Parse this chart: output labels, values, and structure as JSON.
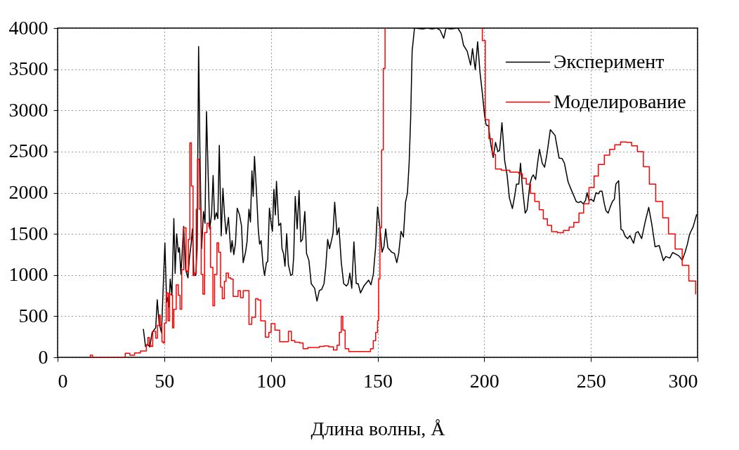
{
  "chart_data": {
    "type": "line",
    "xlabel": "Длина волны, Å",
    "xlim": [
      0,
      300
    ],
    "xticks": [
      0,
      50,
      100,
      150,
      200,
      250,
      300
    ],
    "ylim": [
      0,
      4000
    ],
    "yticks": [
      0,
      500,
      1000,
      1500,
      2000,
      2500,
      3000,
      3500,
      4000
    ],
    "grid": true,
    "legend": "top right",
    "series": [
      {
        "name": "Эксперимент",
        "color": "#000000",
        "x": [
          40.2,
          41.2,
          42.1,
          43.2,
          44.3,
          46,
          46.7,
          47.6,
          48.7,
          50.3,
          51.1,
          51.6,
          52.2,
          52.8,
          53.6,
          54.5,
          55.1,
          55.8,
          56.6,
          57.1,
          57.8,
          59.1,
          60,
          61.1,
          61.8,
          62.6,
          63.2,
          63.9,
          64.8,
          65.4,
          66.1,
          66.7,
          67.5,
          68.4,
          69.1,
          69.8,
          70.6,
          71.3,
          72.2,
          72.9,
          73.6,
          74.4,
          75.1,
          75.8,
          76.7,
          77.5,
          78.2,
          79,
          80.1,
          81.2,
          81.8,
          82.6,
          83.4,
          84.2,
          85.3,
          86.2,
          87,
          88.1,
          88.8,
          89.7,
          90.4,
          91.1,
          91.7,
          92.3,
          93.2,
          94.1,
          94.7,
          95.4,
          96.3,
          97,
          97.9,
          98.5,
          99.3,
          100.1,
          100.7,
          101.4,
          102.1,
          102.6,
          103.7,
          104.6,
          105.2,
          105.9,
          106.6,
          107.4,
          108.2,
          109.3,
          110.1,
          110.7,
          111.4,
          112.3,
          113.2,
          114,
          114.8,
          115.9,
          116.7,
          117.8,
          118.9,
          119.7,
          120.5,
          121.6,
          122.7,
          123.8,
          124.9,
          125.7,
          126.6,
          127.5,
          128.5,
          129.1,
          129.9,
          131,
          131.9,
          133,
          134.1,
          135.4,
          136.2,
          137,
          137.9,
          138.9,
          140,
          140.9,
          142,
          143.6,
          145.8,
          146.9,
          148,
          149.1,
          150,
          151.1,
          152.1,
          153,
          153.8,
          154.8,
          156.6,
          157.9,
          159,
          159.9,
          161,
          162.1,
          163.1,
          164,
          164.8,
          165.5,
          166.2,
          167.3,
          171.1,
          173.3,
          175.5,
          177.7,
          179.3,
          181,
          182.1,
          184.3,
          187.6,
          189.2,
          190.3,
          192,
          193.6,
          194.5,
          195.8,
          196.9,
          198,
          199.1,
          200.2,
          200.9,
          202,
          203.1,
          204.2,
          205.3,
          206.4,
          207.2,
          208.3,
          209.6,
          210.7,
          211.8,
          213.2,
          214.3,
          215.1,
          216.2,
          217,
          217.9,
          219.2,
          220.1,
          221.4,
          222.3,
          223,
          224.1,
          225,
          225.9,
          227.2,
          228.3,
          229.4,
          231,
          233.2,
          235.1,
          236.5,
          237.6,
          239.3,
          240.6,
          242,
          243.1,
          244.2,
          245.3,
          246.4,
          247.5,
          248.2,
          249.1,
          250.2,
          251.3,
          252.4,
          253.5,
          254.3,
          255.2,
          256.3,
          257.1,
          258.1,
          259,
          260.1,
          261,
          261.7,
          263,
          264.1,
          265,
          266.1,
          267.2,
          268.3,
          270,
          271.1,
          272.1,
          273.8,
          275.4,
          277.1,
          278.5,
          280.1,
          282,
          284,
          285.1,
          287,
          288.3,
          289.9,
          291.3,
          292.8,
          294.1,
          295.2,
          296.3,
          297.9,
          299.6
        ],
        "values": [
          345,
          133,
          160,
          127,
          302,
          360,
          700,
          415,
          300,
          1390,
          670,
          725,
          613,
          950,
          755,
          1686,
          1020,
          1500,
          1277,
          1333,
          1008,
          1590,
          1065,
          966,
          1206,
          1376,
          1560,
          995,
          995,
          1320,
          3777,
          2534,
          1320,
          1771,
          1630,
          2986,
          2209,
          1560,
          1743,
          2209,
          1672,
          1757,
          1686,
          2576,
          1475,
          2054,
          1743,
          1500,
          1700,
          1277,
          1418,
          1248,
          1390,
          1813,
          1729,
          1600,
          1150,
          1277,
          1404,
          1800,
          1644,
          2266,
          1955,
          2441,
          2026,
          1545,
          1376,
          1418,
          1122,
          995,
          1150,
          1164,
          1813,
          1630,
          1531,
          2040,
          1729,
          2138,
          1600,
          1630,
          1320,
          1263,
          1107,
          1503,
          1122,
          995,
          1008,
          1234,
          1955,
          1560,
          2026,
          1404,
          1432,
          1771,
          1263,
          1178,
          896,
          867,
          839,
          684,
          811,
          825,
          896,
          1093,
          1432,
          1320,
          1432,
          1503,
          1884,
          1489,
          1574,
          1150,
          896,
          867,
          896,
          1023,
          839,
          1404,
          896,
          896,
          783,
          867,
          938,
          881,
          1008,
          1348,
          1828,
          1574,
          1277,
          1348,
          1560,
          1333,
          1277,
          1263,
          1150,
          1263,
          1531,
          1460,
          1884,
          1997,
          2364,
          2900,
          3720,
          4000,
          3990,
          4000,
          3990,
          4000,
          3975,
          3876,
          4000,
          3990,
          4000,
          3932,
          3791,
          3720,
          3551,
          3750,
          3494,
          3833,
          3466,
          3212,
          2929,
          2823,
          2810,
          2583,
          2428,
          2611,
          2499,
          2513,
          2851,
          2386,
          2217,
          1935,
          1808,
          1963,
          2104,
          2104,
          2358,
          2062,
          1752,
          1794,
          2104,
          2189,
          2217,
          2161,
          2358,
          2527,
          2358,
          2310,
          2470,
          2766,
          2696,
          2420,
          2415,
          2358,
          2132,
          2048,
          1963,
          1893,
          1879,
          1893,
          1865,
          1907,
          2000,
          1907,
          1921,
          1893,
          2000,
          1986,
          2020,
          2020,
          1865,
          1780,
          1752,
          1822,
          1893,
          1921,
          2104,
          2146,
          1555,
          1541,
          1470,
          1442,
          1479,
          1386,
          1513,
          1527,
          1442,
          1640,
          1822,
          1625,
          1344,
          1358,
          1175,
          1225,
          1206,
          1273,
          1253,
          1231,
          1180,
          1273,
          1372,
          1499,
          1583,
          1738
        ]
      },
      {
        "name": "Моделирование",
        "color": "#ff0000",
        "type": "step",
        "x": [
          14.8,
          15.3,
          16.4,
          31.2,
          31.7,
          33.9,
          36.1,
          38.8,
          41.6,
          42.3,
          43,
          43.8,
          44.6,
          46,
          46.8,
          47.6,
          48.1,
          48.9,
          49.5,
          50.1,
          50.9,
          51.8,
          52.5,
          53.3,
          53.9,
          54.5,
          55.6,
          56.6,
          57.4,
          58.2,
          59.1,
          60.2,
          60.7,
          61.3,
          62,
          62.7,
          63.5,
          64.2,
          65,
          65.6,
          66.4,
          67.3,
          68.1,
          68.9,
          70,
          70.9,
          71.7,
          72.8,
          73.6,
          74.7,
          75.5,
          76.4,
          77.2,
          78.2,
          79,
          80.1,
          81.2,
          82.3,
          83.4,
          84.6,
          85.7,
          87,
          89.7,
          91,
          92.8,
          93.9,
          95.2,
          97.4,
          99,
          100.1,
          101.9,
          104.1,
          106.3,
          108.2,
          109.6,
          111.2,
          113.4,
          115.1,
          117.3,
          119.5,
          122.7,
          124.9,
          127.1,
          129.3,
          131,
          132.1,
          133,
          133.7,
          134.8,
          136.5,
          144.7,
          146.7,
          148,
          149.1,
          150,
          150.5,
          151.1,
          151.9,
          152.7,
          153.5,
          160,
          198.6,
          199.1,
          200.5,
          202.2,
          203.8,
          205.3,
          208,
          212,
          216.2,
          217.9,
          219.7,
          221.7,
          223.7,
          225.8,
          227.7,
          229.6,
          231.6,
          234.3,
          237.1,
          239.8,
          242,
          244.4,
          246.6,
          249.1,
          251.5,
          253.5,
          256.3,
          258.8,
          261.2,
          263.9,
          266.7,
          269.1,
          271.8,
          274.6,
          277.4,
          280.4,
          283.7,
          286.4,
          289.5,
          292.8,
          295.9,
          299.1
        ],
        "values": [
          0,
          25,
          0,
          0,
          48,
          25,
          54,
          76,
          147,
          240,
          147,
          133,
          316,
          232,
          387,
          514,
          387,
          189,
          175,
          415,
          783,
          444,
          768,
          754,
          359,
          585,
          881,
          754,
          585,
          1065,
          1574,
          1051,
          1037,
          1432,
          2605,
          2082,
          994,
          1023,
          1800,
          2407,
          1800,
          1008,
          768,
          1517,
          1630,
          1588,
          1093,
          627,
          1008,
          1390,
          1277,
          853,
          712,
          924,
          1023,
          966,
          952,
          740,
          740,
          811,
          726,
          811,
          401,
          486,
          712,
          698,
          444,
          246,
          302,
          410,
          331,
          189,
          189,
          316,
          203,
          184,
          175,
          105,
          119,
          119,
          133,
          138,
          127,
          90,
          147,
          302,
          500,
          331,
          105,
          71,
          71,
          105,
          203,
          302,
          444,
          952,
          1574,
          2520,
          3509,
          4000,
          null,
          4000,
          3848,
          2887,
          2654,
          2465,
          2287,
          2273,
          2250,
          2231,
          2175,
          2104,
          1992,
          1893,
          1794,
          1682,
          1603,
          1527,
          1513,
          1541,
          1583,
          1640,
          1752,
          1865,
          2062,
          2203,
          2344,
          2456,
          2527,
          2583,
          2617,
          2611,
          2569,
          2499,
          2315,
          2104,
          1893,
          1696,
          1499,
          1316,
          1118,
          927,
          766
        ]
      }
    ]
  }
}
